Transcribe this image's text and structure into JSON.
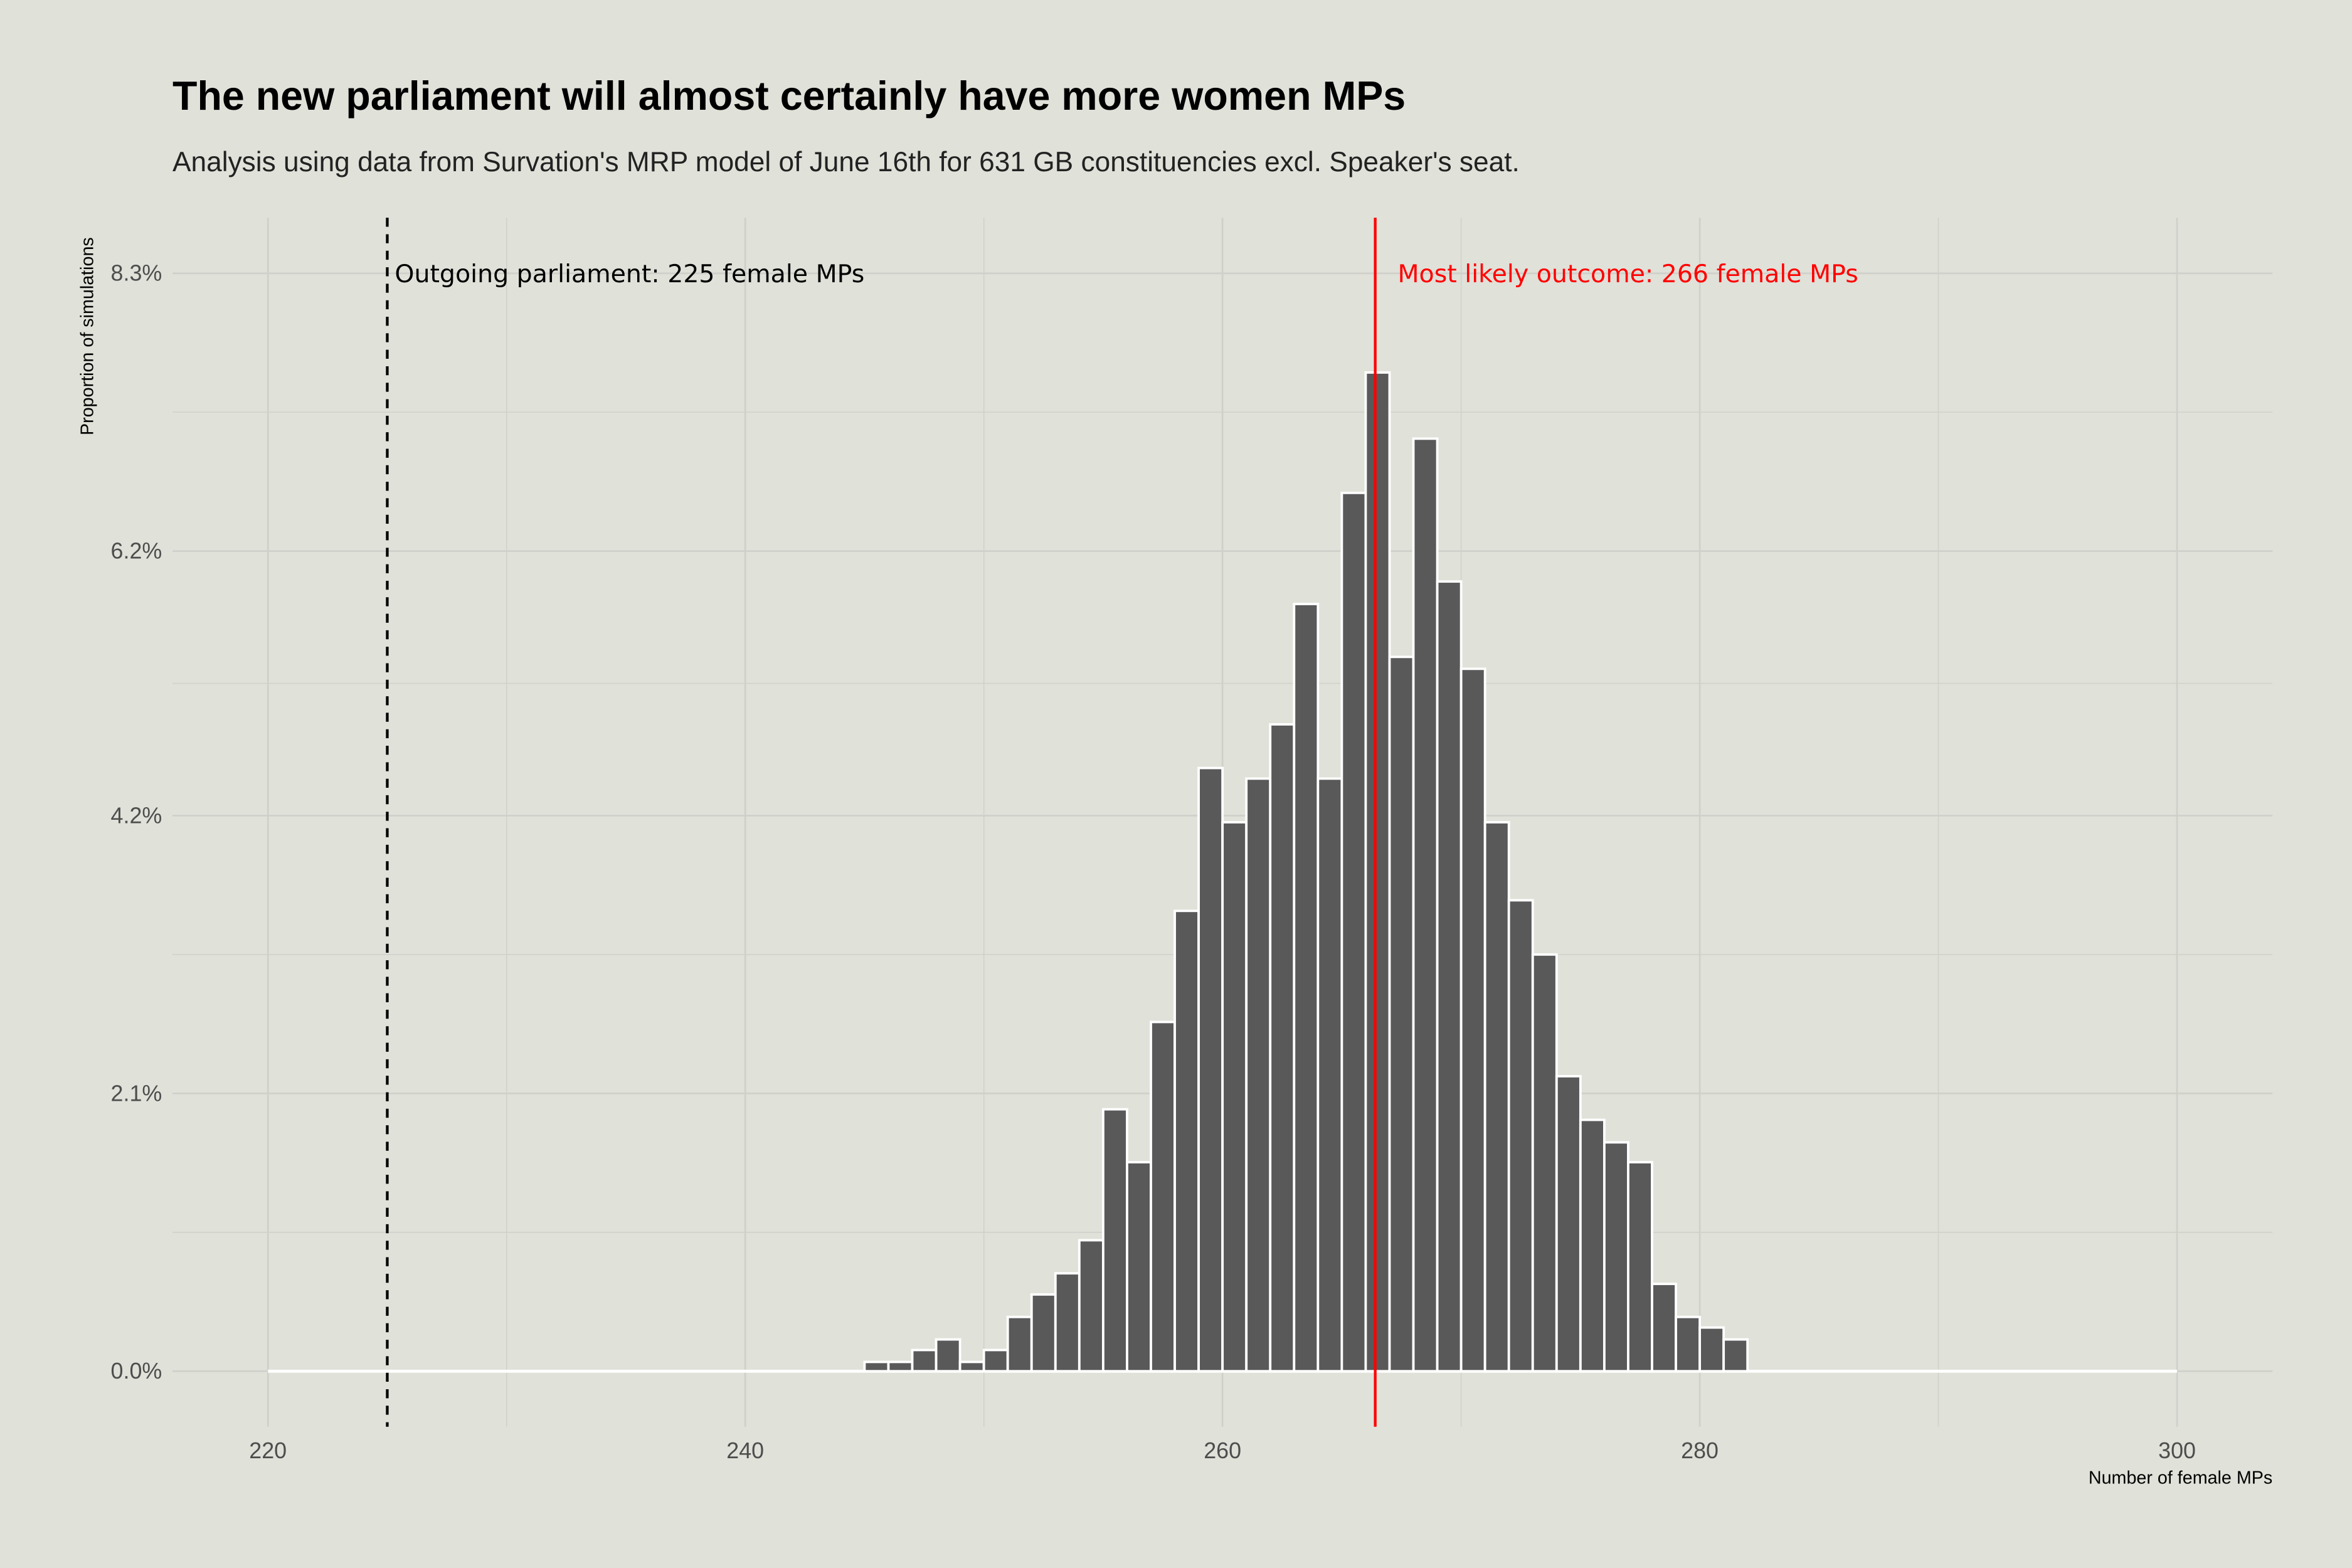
{
  "chart_data": {
    "type": "bar",
    "title": "The new parliament will almost certainly have more women MPs",
    "subtitle": "Analysis using data from Survation's MRP model of June 16th for 631 GB constituencies excl. Speaker's seat.",
    "xlabel": "Number of female MPs",
    "ylabel": "Proportion of simulations",
    "xlim": [
      216,
      304
    ],
    "ylim": [
      -0.42,
      8.72
    ],
    "x_ticks": [
      220,
      240,
      260,
      280,
      300
    ],
    "y_ticks": [
      0,
      2.1,
      4.2,
      6.2,
      8.3
    ],
    "y_tick_labels": [
      "0.0%",
      "2.1%",
      "4.2%",
      "6.2%",
      "8.3%"
    ],
    "grid": true,
    "bin_width": 1,
    "bin_range": [
      220,
      300
    ],
    "bin_starts": [
      245,
      246,
      247,
      248,
      249,
      250,
      251,
      252,
      253,
      254,
      255,
      256,
      257,
      258,
      259,
      260,
      261,
      262,
      263,
      264,
      265,
      266,
      267,
      268,
      269,
      270,
      271,
      272,
      273,
      274,
      275,
      276,
      277,
      278,
      279,
      280,
      281
    ],
    "values_percent": [
      0.07,
      0.07,
      0.16,
      0.24,
      0.07,
      0.16,
      0.41,
      0.58,
      0.74,
      0.99,
      1.98,
      1.58,
      2.64,
      3.48,
      4.56,
      4.15,
      4.48,
      4.89,
      5.8,
      4.48,
      6.64,
      7.55,
      5.4,
      7.05,
      5.97,
      5.31,
      4.15,
      3.56,
      3.15,
      2.23,
      1.9,
      1.73,
      1.58,
      0.66,
      0.41,
      0.33,
      0.24
    ],
    "colors": {
      "background": "#e0e1d9",
      "bar_fill": "#595959",
      "bar_outline": "#ffffff",
      "grid": "#cfd0ca",
      "highlight": "#ff0000"
    },
    "annotations": [
      {
        "label": "Outgoing parliament: 225 female MPs",
        "x": 225,
        "line_style": "dashed",
        "color": "#000000"
      },
      {
        "label": "Most likely outcome: 266 female MPs",
        "x": 266.4,
        "line_style": "solid",
        "color": "#ff0000"
      }
    ]
  }
}
